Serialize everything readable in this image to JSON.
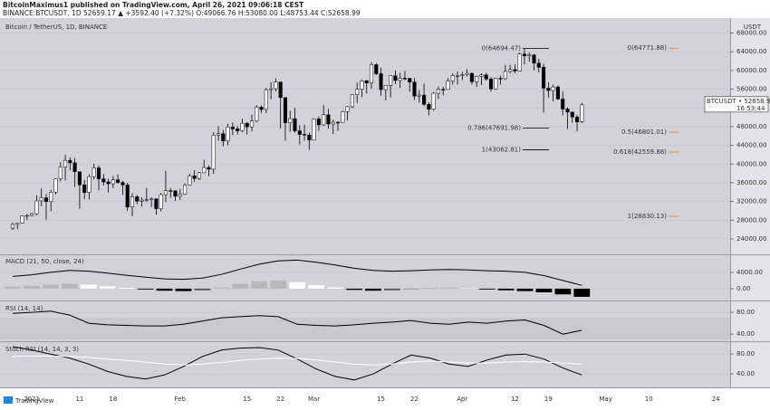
{
  "header": {
    "line1": "BitcoinMaximus1 published on TradingView.com, April 26, 2021 09:06:18 CEST",
    "line2": "BINANCE:BTCUSDT, 1D 52659.17 ▲ +3592.40 (+7.32%) O:49066.76 H:53080.00 L:48753.44 C:52658.99"
  },
  "footer": {
    "logo": "TradingView"
  },
  "chart_data": [
    {
      "type": "candlestick",
      "title": "Bitcoin / TetherUS, 1D, BINANCE",
      "unit": "USDT",
      "price_label": "BTCUSDT • 52658.99",
      "countdown": "16:53:44",
      "categories": [
        null,
        null,
        null,
        null,
        "2021",
        null,
        null,
        null,
        null,
        null,
        null,
        null,
        null,
        null,
        "11",
        null,
        null,
        null,
        null,
        null,
        null,
        "18",
        null,
        null,
        null,
        null,
        null,
        null,
        null,
        null,
        null,
        null,
        null,
        null,
        null,
        "Feb",
        null,
        null,
        null,
        null,
        null,
        null,
        null,
        null,
        null,
        null,
        null,
        null,
        null,
        "15",
        null,
        null,
        null,
        null,
        null,
        null,
        "22",
        null,
        null,
        null,
        null,
        null,
        null,
        "Mar",
        null,
        null,
        null,
        null,
        null,
        null,
        null,
        null,
        null,
        null,
        null,
        null,
        null,
        "15",
        null,
        null,
        null,
        null,
        null,
        null,
        "22",
        null,
        null,
        null,
        null,
        null,
        null,
        null,
        null,
        null,
        "Apr",
        null,
        null,
        null,
        null,
        null,
        null,
        null,
        null,
        null,
        null,
        "12",
        null,
        null,
        null,
        null,
        null,
        null,
        "19",
        null,
        null,
        null,
        null,
        null,
        null,
        null,
        null,
        null,
        null,
        null,
        "May",
        null,
        null,
        null,
        null,
        null,
        null,
        null,
        null,
        "10",
        null,
        null,
        null,
        null,
        null,
        null,
        null,
        null,
        null,
        null,
        null,
        null,
        null,
        "24",
        null,
        null,
        null
      ],
      "open": [
        26300,
        27100,
        27400,
        28900,
        29000,
        29374,
        32127,
        32782,
        31971,
        33992,
        36824,
        39371,
        40797,
        40254,
        38356,
        35566,
        33922,
        37316,
        39187,
        36825,
        36178,
        35791,
        36630,
        36069,
        35547,
        30825,
        33005,
        32067,
        32289,
        32366,
        32569,
        30432,
        33466,
        34316,
        34269,
        33114,
        33537,
        35510,
        37472,
        36926,
        38144,
        39266,
        38903,
        46196,
        46481,
        44918,
        47909,
        47504,
        47105,
        48717,
        47945,
        49199,
        52149,
        51679,
        55888,
        56099,
        57539,
        54207,
        48824,
        49705,
        47093,
        46339,
        46188,
        45137,
        49631,
        48378,
        50538,
        48561,
        48927,
        48912,
        51206,
        52246,
        54824,
        56008,
        57805,
        57332,
        61243,
        59302,
        55907,
        56804,
        58870,
        57858,
        58346,
        58313,
        57523,
        54529,
        54738,
        52774,
        51704,
        55137,
        55973,
        55950,
        57750,
        58917,
        58918,
        59095,
        59384,
        57603,
        58758,
        59057,
        58192,
        56048,
        58323,
        58245,
        59793,
        60204,
        59893,
        63503,
        63109,
        63314,
        61572,
        60683,
        56216,
        55724,
        56473,
        53906,
        51762,
        51093,
        50050,
        49066.76,
        null,
        null,
        null,
        null,
        null,
        null,
        null,
        null,
        null,
        null,
        null,
        null,
        null,
        null,
        null,
        null,
        null,
        null,
        null,
        null,
        null,
        null,
        null,
        null,
        null,
        null,
        null,
        null,
        null,
        null,
        null
      ],
      "high": [
        27400,
        27450,
        29000,
        29300,
        29600,
        33300,
        34800,
        33600,
        34500,
        36900,
        40400,
        41950,
        41400,
        41300,
        38400,
        36600,
        37800,
        40100,
        39700,
        37900,
        36800,
        37400,
        37800,
        36400,
        36000,
        33800,
        33400,
        32900,
        34900,
        32900,
        32600,
        33800,
        38500,
        34900,
        34400,
        34700,
        35900,
        37900,
        38700,
        38300,
        40900,
        39700,
        46800,
        48100,
        47300,
        48600,
        48900,
        48100,
        49700,
        49000,
        50600,
        52600,
        52500,
        56300,
        57500,
        58350,
        57500,
        54200,
        51400,
        52000,
        48300,
        48400,
        46700,
        49800,
        50200,
        52600,
        51800,
        49500,
        49200,
        51400,
        52400,
        54900,
        57400,
        58100,
        58000,
        61800,
        61600,
        60600,
        56900,
        58900,
        60000,
        59500,
        59900,
        58400,
        58400,
        55800,
        57200,
        53200,
        55400,
        56600,
        56500,
        58400,
        59400,
        59800,
        59700,
        60300,
        59600,
        58900,
        59400,
        59500,
        58600,
        58400,
        58900,
        61200,
        61200,
        61300,
        63800,
        64694.47,
        63800,
        63500,
        62500,
        61400,
        57500,
        57000,
        56800,
        55500,
        52100,
        51200,
        50500,
        53080,
        null,
        null,
        null,
        null,
        null,
        null,
        null,
        null,
        null,
        null,
        null,
        null,
        null,
        null,
        null,
        null,
        null,
        null,
        null,
        null,
        null,
        null,
        null,
        null,
        null,
        null,
        null,
        null,
        null,
        null,
        null
      ],
      "low": [
        25900,
        26100,
        27300,
        28000,
        28800,
        29100,
        31000,
        28100,
        29900,
        33500,
        36300,
        36500,
        38700,
        35100,
        30400,
        32500,
        32400,
        36700,
        34400,
        35400,
        33900,
        34800,
        35800,
        33400,
        30000,
        28850,
        31400,
        30900,
        31900,
        30800,
        29200,
        29900,
        31900,
        32800,
        32100,
        32300,
        33400,
        35400,
        36200,
        36600,
        38100,
        37400,
        37900,
        45000,
        43800,
        44000,
        46200,
        46300,
        46800,
        46300,
        47000,
        48900,
        50900,
        50900,
        53900,
        55500,
        47600,
        45000,
        46900,
        46700,
        44200,
        45000,
        43016,
        45000,
        47100,
        48100,
        47600,
        46400,
        47100,
        48900,
        49300,
        51900,
        53000,
        54300,
        55100,
        56100,
        59000,
        54600,
        53600,
        54200,
        57100,
        56300,
        57900,
        55500,
        53700,
        53100,
        52400,
        50400,
        51400,
        53900,
        54700,
        55900,
        57000,
        57000,
        57900,
        58700,
        57000,
        56500,
        56900,
        57800,
        55500,
        55900,
        57000,
        58000,
        59400,
        59400,
        59800,
        61300,
        61900,
        60000,
        59600,
        51000,
        54200,
        53400,
        53700,
        50400,
        47500,
        48800,
        47000,
        48753.44,
        null,
        null,
        null,
        null,
        null,
        null,
        null,
        null,
        null,
        null,
        null,
        null,
        null,
        null,
        null,
        null,
        null,
        null,
        null,
        null,
        null,
        null,
        null,
        null,
        null,
        null,
        null,
        null,
        null,
        null,
        null
      ],
      "close": [
        27100,
        27400,
        28900,
        29000,
        29374,
        32127,
        32782,
        31971,
        33992,
        36824,
        39371,
        40797,
        40254,
        38356,
        35566,
        33922,
        37316,
        39187,
        36825,
        36178,
        35791,
        36630,
        36069,
        35547,
        30825,
        33005,
        32067,
        32289,
        32366,
        32569,
        30432,
        33466,
        34316,
        34269,
        33114,
        33537,
        35510,
        37472,
        36926,
        38144,
        39266,
        38903,
        46196,
        46481,
        44918,
        47909,
        47504,
        47105,
        48717,
        47945,
        49199,
        52149,
        51679,
        55888,
        56099,
        57539,
        54207,
        48824,
        49705,
        47093,
        46339,
        46188,
        45137,
        49631,
        48378,
        50538,
        48561,
        48927,
        48912,
        51206,
        52246,
        54824,
        56008,
        57805,
        57332,
        61243,
        59302,
        55907,
        56804,
        58870,
        57858,
        58346,
        58313,
        57523,
        54529,
        54738,
        52774,
        51704,
        55137,
        55973,
        55950,
        57750,
        58917,
        58918,
        59095,
        59384,
        57603,
        58758,
        59057,
        58192,
        56048,
        58323,
        58245,
        59793,
        60204,
        59893,
        63503,
        63109,
        63314,
        61572,
        60683,
        56216,
        55724,
        56473,
        53906,
        51762,
        51093,
        50050,
        49004,
        52658.99,
        null,
        null,
        null,
        null,
        null,
        null,
        null,
        null,
        null,
        null,
        null,
        null,
        null,
        null,
        null,
        null,
        null,
        null,
        null,
        null,
        null,
        null,
        null,
        null,
        null,
        null,
        null,
        null,
        null,
        null,
        null
      ],
      "up_color": "#ffffff",
      "down_color": "#000000",
      "ylim": [
        20700,
        71200
      ],
      "yticks": [
        {
          "value": 24000,
          "label": "24000.00"
        },
        {
          "value": 28000,
          "label": "28000.00"
        },
        {
          "value": 32000,
          "label": "32000.00"
        },
        {
          "value": 36000,
          "label": "36000.00"
        },
        {
          "value": 40000,
          "label": "40000.00"
        },
        {
          "value": 44000,
          "label": "44000.00"
        },
        {
          "value": 48000,
          "label": "48000.00"
        },
        {
          "value": 52000,
          "label": "52000.00"
        },
        {
          "value": 56000,
          "label": "56000.00"
        },
        {
          "value": 60000,
          "label": "60000.00"
        },
        {
          "value": 64000,
          "label": "64000.00"
        },
        {
          "value": 68000,
          "label": "68000.00"
        }
      ],
      "fib_black": [
        {
          "value": 64694.47,
          "label": "0(64694.47)"
        },
        {
          "value": 47691.98,
          "label": "0.786(47691.98)"
        },
        {
          "value": 43062.81,
          "label": "1(43062.81)"
        }
      ],
      "fib_orange": [
        {
          "value": 64771.88,
          "label": "0(64771.88)"
        },
        {
          "value": 46801.01,
          "label": "0.5(46801.01)"
        },
        {
          "value": 42559.88,
          "label": "0.618(42559.88)"
        },
        {
          "value": 28830.13,
          "label": "1(28830.13)"
        }
      ],
      "fib_color": "#f57c00"
    },
    {
      "type": "macd",
      "title": "MACD (21, 50, close, 24)",
      "values": [
        3000,
        3400,
        4000,
        4500,
        4300,
        3800,
        3300,
        2800,
        2400,
        2300,
        2600,
        3500,
        4800,
        6000,
        6800,
        7000,
        6500,
        5800,
        5000,
        4500,
        4300,
        4400,
        4600,
        4700,
        4600,
        4400,
        4300,
        4000,
        3200,
        2000,
        800
      ],
      "histogram": [
        500,
        700,
        1000,
        1200,
        1000,
        600,
        200,
        -200,
        -500,
        -600,
        -400,
        300,
        1200,
        1800,
        2000,
        1600,
        900,
        300,
        -300,
        -500,
        -400,
        -100,
        200,
        300,
        100,
        -200,
        -400,
        -600,
        -900,
        -1400,
        -2000
      ],
      "color": "#000000",
      "ylim": [
        -2900,
        8200
      ],
      "yticks": [
        {
          "value": 0,
          "label": "0.00"
        },
        {
          "value": 4000,
          "label": "4000.00"
        }
      ]
    },
    {
      "type": "line",
      "title": "RSI (14, 14)",
      "values": [
        78,
        80,
        82,
        75,
        60,
        57,
        56,
        55,
        55,
        58,
        64,
        70,
        72,
        74,
        72,
        58,
        56,
        55,
        57,
        60,
        62,
        65,
        60,
        58,
        62,
        60,
        64,
        66,
        56,
        40,
        47
      ],
      "color": "#000000",
      "band": [
        30,
        70
      ],
      "ylim": [
        27,
        100
      ],
      "yticks": [
        {
          "value": 40,
          "label": "40.00"
        },
        {
          "value": 80,
          "label": "80.00"
        }
      ]
    },
    {
      "type": "line",
      "title": "Stoch RSI (14, 14, 3, 3)",
      "series": [
        {
          "color": "#000000",
          "values": [
            95,
            88,
            80,
            72,
            60,
            45,
            35,
            30,
            38,
            55,
            75,
            88,
            92,
            93,
            88,
            70,
            50,
            35,
            28,
            40,
            60,
            78,
            72,
            60,
            55,
            68,
            78,
            80,
            70,
            52,
            38
          ]
        },
        {
          "color": "#ffffff",
          "values": [
            75,
            76,
            76,
            75,
            73,
            70,
            67,
            64,
            60,
            58,
            60,
            63,
            67,
            70,
            72,
            71,
            68,
            64,
            60,
            58,
            60,
            64,
            66,
            64,
            62,
            62,
            64,
            65,
            64,
            62,
            60
          ]
        }
      ],
      "ylim": [
        13,
        104
      ],
      "yticks": [
        {
          "value": 40,
          "label": "40.00"
        },
        {
          "value": 80,
          "label": "80.00"
        }
      ]
    }
  ]
}
